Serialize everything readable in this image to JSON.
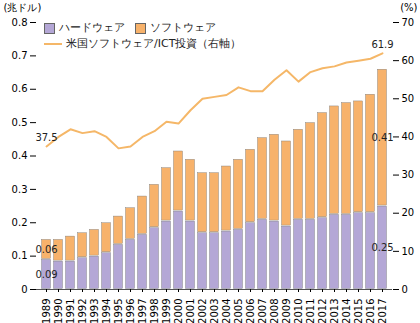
{
  "chart_data": {
    "type": "bar",
    "stacked": true,
    "data_labels": true,
    "grid": false,
    "legend": "top-left",
    "ylabel": "(兆ドル)",
    "y2label": "(%)",
    "categories": [
      "1989",
      "1990",
      "1991",
      "1992",
      "1993",
      "1994",
      "1995",
      "1996",
      "1997",
      "1998",
      "1999",
      "2000",
      "2001",
      "2002",
      "2003",
      "2004",
      "2005",
      "2006",
      "2007",
      "2008",
      "2009",
      "2010",
      "2011",
      "2012",
      "2013",
      "2014",
      "2015",
      "2016",
      "2017"
    ],
    "ylim": [
      0,
      0.8
    ],
    "yticks": [
      0,
      0.1,
      0.2,
      0.3,
      0.4,
      0.5,
      0.6,
      0.7,
      0.8
    ],
    "y2lim": [
      0,
      70
    ],
    "y2ticks": [
      0,
      10,
      20,
      30,
      40,
      50,
      60,
      70
    ],
    "series": [
      {
        "name": "ハードウェア",
        "color": "#b4a7d6",
        "values": [
          0.09,
          0.085,
          0.085,
          0.095,
          0.1,
          0.11,
          0.135,
          0.15,
          0.165,
          0.185,
          0.205,
          0.235,
          0.205,
          0.17,
          0.17,
          0.175,
          0.18,
          0.2,
          0.21,
          0.205,
          0.19,
          0.21,
          0.21,
          0.215,
          0.225,
          0.225,
          0.23,
          0.23,
          0.25
        ],
        "value_labels": [
          "0.09",
          null,
          null,
          null,
          null,
          null,
          null,
          null,
          null,
          null,
          null,
          null,
          null,
          null,
          null,
          null,
          null,
          null,
          null,
          null,
          null,
          null,
          null,
          null,
          null,
          null,
          null,
          null,
          "0.25"
        ]
      },
      {
        "name": "ソフトウェア",
        "color": "#f7b26b",
        "values": [
          0.06,
          0.065,
          0.075,
          0.075,
          0.08,
          0.09,
          0.085,
          0.095,
          0.115,
          0.13,
          0.16,
          0.18,
          0.185,
          0.18,
          0.18,
          0.195,
          0.21,
          0.22,
          0.245,
          0.26,
          0.255,
          0.27,
          0.29,
          0.315,
          0.325,
          0.335,
          0.335,
          0.355,
          0.41
        ],
        "value_labels": [
          "0.06",
          null,
          null,
          null,
          null,
          null,
          null,
          null,
          null,
          null,
          null,
          null,
          null,
          null,
          null,
          null,
          null,
          null,
          null,
          null,
          null,
          null,
          null,
          null,
          null,
          null,
          null,
          null,
          "0.41"
        ]
      },
      {
        "name": "米国ソフトウェア/ICT投資（右軸）",
        "type": "line",
        "axis": "y2",
        "color": "#f5b768",
        "values": [
          37.5,
          40,
          42,
          41,
          41.5,
          40,
          37,
          37.5,
          40,
          41.5,
          44,
          43.5,
          47,
          50,
          50.5,
          51,
          53,
          52,
          52,
          55,
          57.5,
          54.5,
          57,
          58,
          58.5,
          59.5,
          60,
          60.5,
          61.9
        ],
        "value_labels": [
          "37.5",
          null,
          null,
          null,
          null,
          null,
          null,
          null,
          null,
          null,
          null,
          null,
          null,
          null,
          null,
          null,
          null,
          null,
          null,
          null,
          null,
          null,
          null,
          null,
          null,
          null,
          null,
          null,
          "61.9"
        ]
      }
    ]
  }
}
